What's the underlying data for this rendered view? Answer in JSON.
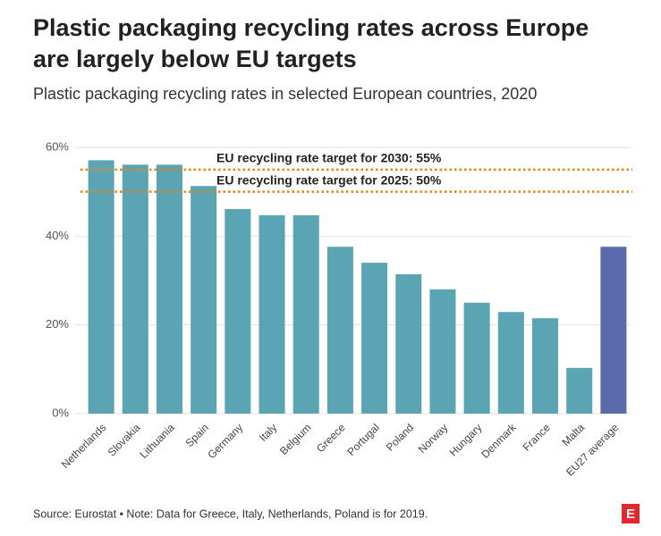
{
  "chart_data": {
    "type": "bar",
    "title": [
      "Plastic packaging recycling rates across Europe",
      "are largely below EU targets"
    ],
    "subtitle": "Plastic packaging recycling rates in selected European countries, 2020",
    "categories": [
      "Netherlands",
      "Slovakia",
      "Lithuania",
      "Spain",
      "Germany",
      "Italy",
      "Belgium",
      "Greece",
      "Portugal",
      "Poland",
      "Norway",
      "Hungary",
      "Denmark",
      "France",
      "Malta",
      "EU27 average"
    ],
    "values": [
      57.1,
      56.1,
      56.1,
      51.3,
      46.1,
      44.7,
      44.7,
      37.6,
      34.0,
      31.4,
      28.0,
      25.0,
      22.9,
      21.5,
      10.3,
      37.6
    ],
    "colors": [
      "#5ba4b4",
      "#5ba4b4",
      "#5ba4b4",
      "#5ba4b4",
      "#5ba4b4",
      "#5ba4b4",
      "#5ba4b4",
      "#5ba4b4",
      "#5ba4b4",
      "#5ba4b4",
      "#5ba4b4",
      "#5ba4b4",
      "#5ba4b4",
      "#5ba4b4",
      "#5ba4b4",
      "#5b6aaa"
    ],
    "ylim": [
      0,
      60
    ],
    "yticks": [
      {
        "value": 0,
        "label": "0%"
      },
      {
        "value": 20,
        "label": "20%"
      },
      {
        "value": 40,
        "label": "40%"
      },
      {
        "value": 60,
        "label": "60%"
      }
    ],
    "grid": true,
    "reference_lines": [
      {
        "value": 55,
        "label": "EU recycling rate target for 2030: 55%",
        "color": "#e8820c"
      },
      {
        "value": 50,
        "label": "EU recycling rate target for 2025: 50%",
        "color": "#e8820c"
      }
    ],
    "source": "Source: Eurostat • Note: Data for Greece, Italy, Netherlands, Poland is for 2019.",
    "logo": "E"
  }
}
